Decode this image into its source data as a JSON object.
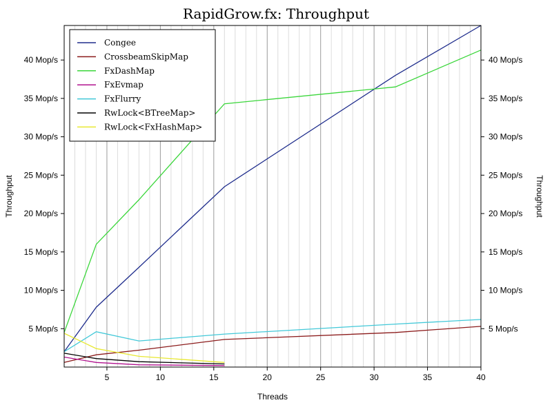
{
  "chart_data": {
    "type": "line",
    "title": "RapidGrow.fx: Throughput",
    "xlabel": "Threads",
    "ylabel": "Throughput",
    "xlim": [
      1,
      40
    ],
    "ylim": [
      0,
      44.5
    ],
    "x_ticks": [
      5,
      10,
      15,
      20,
      25,
      30,
      35,
      40
    ],
    "x_tick_labels": [
      "5",
      "10",
      "15",
      "20",
      "25",
      "30",
      "35",
      "40"
    ],
    "y_ticks": [
      5,
      10,
      15,
      20,
      25,
      30,
      35,
      40
    ],
    "y_tick_labels": [
      "5 Mop/s",
      "10 Mop/s",
      "15 Mop/s",
      "20 Mop/s",
      "25 Mop/s",
      "30 Mop/s",
      "35 Mop/s",
      "40 Mop/s"
    ],
    "grid": true,
    "legend_position": "top-left",
    "series": [
      {
        "name": "Congee",
        "color": "#1e2c8c",
        "x": [
          1,
          4,
          8,
          16,
          32,
          40
        ],
        "y": [
          2.0,
          7.8,
          13.0,
          23.5,
          38.0,
          44.5
        ]
      },
      {
        "name": "CrossbeamSkipMap",
        "color": "#8b1a1a",
        "x": [
          1,
          4,
          8,
          16,
          32,
          40
        ],
        "y": [
          0.6,
          1.6,
          2.2,
          3.6,
          4.5,
          5.3
        ]
      },
      {
        "name": "FxDashMap",
        "color": "#3ad63a",
        "x": [
          1,
          4,
          8,
          16,
          32,
          40
        ],
        "y": [
          4.5,
          16.0,
          21.8,
          34.3,
          36.5,
          41.3
        ]
      },
      {
        "name": "FxEvmap",
        "color": "#b0108e",
        "x": [
          1,
          4,
          8,
          16
        ],
        "y": [
          1.3,
          0.6,
          0.3,
          0.2
        ]
      },
      {
        "name": "FxFlurry",
        "color": "#40c8d8",
        "x": [
          1,
          4,
          8,
          16,
          32,
          40
        ],
        "y": [
          2.0,
          4.6,
          3.4,
          4.3,
          5.6,
          6.2
        ]
      },
      {
        "name": "RwLock<BTreeMap>",
        "color": "#000000",
        "x": [
          1,
          4,
          8,
          16
        ],
        "y": [
          1.8,
          1.1,
          0.7,
          0.4
        ]
      },
      {
        "name": "RwLock<FxHashMap>",
        "color": "#e8e830",
        "x": [
          1,
          4,
          8,
          16
        ],
        "y": [
          4.4,
          2.4,
          1.4,
          0.6
        ]
      }
    ]
  }
}
